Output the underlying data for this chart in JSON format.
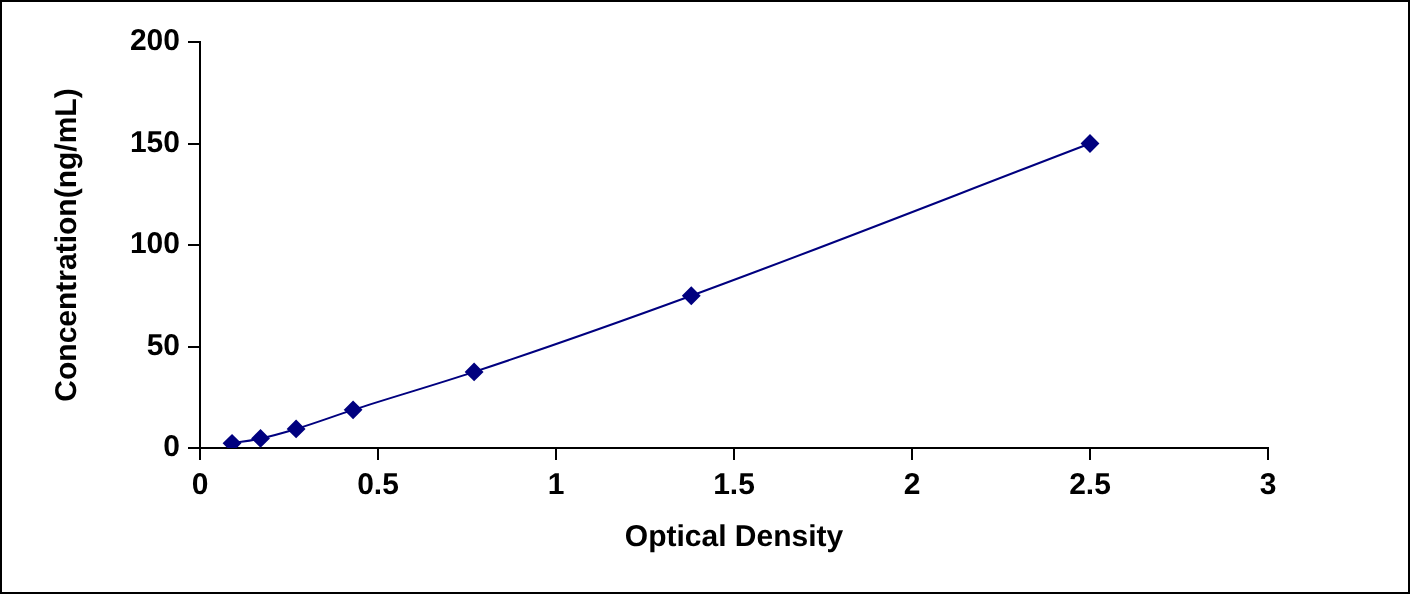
{
  "chart_data": {
    "type": "line",
    "xlabel": "Optical Density",
    "ylabel": "Concentration(ng/mL)",
    "x": [
      0.09,
      0.17,
      0.27,
      0.43,
      0.77,
      1.38,
      2.5
    ],
    "series": [
      {
        "color": "#00007f",
        "values": [
          2.3,
          4.7,
          9.4,
          18.8,
          37.5,
          75,
          150
        ]
      }
    ],
    "xlim": [
      0,
      3
    ],
    "xticks": [
      0,
      0.5,
      1,
      1.5,
      2,
      2.5,
      3
    ],
    "ylim": [
      0,
      200
    ],
    "yticks": [
      0,
      50,
      100,
      150,
      200
    ],
    "marker": "diamond",
    "line_style": "solid",
    "grid": false,
    "legend": false
  }
}
